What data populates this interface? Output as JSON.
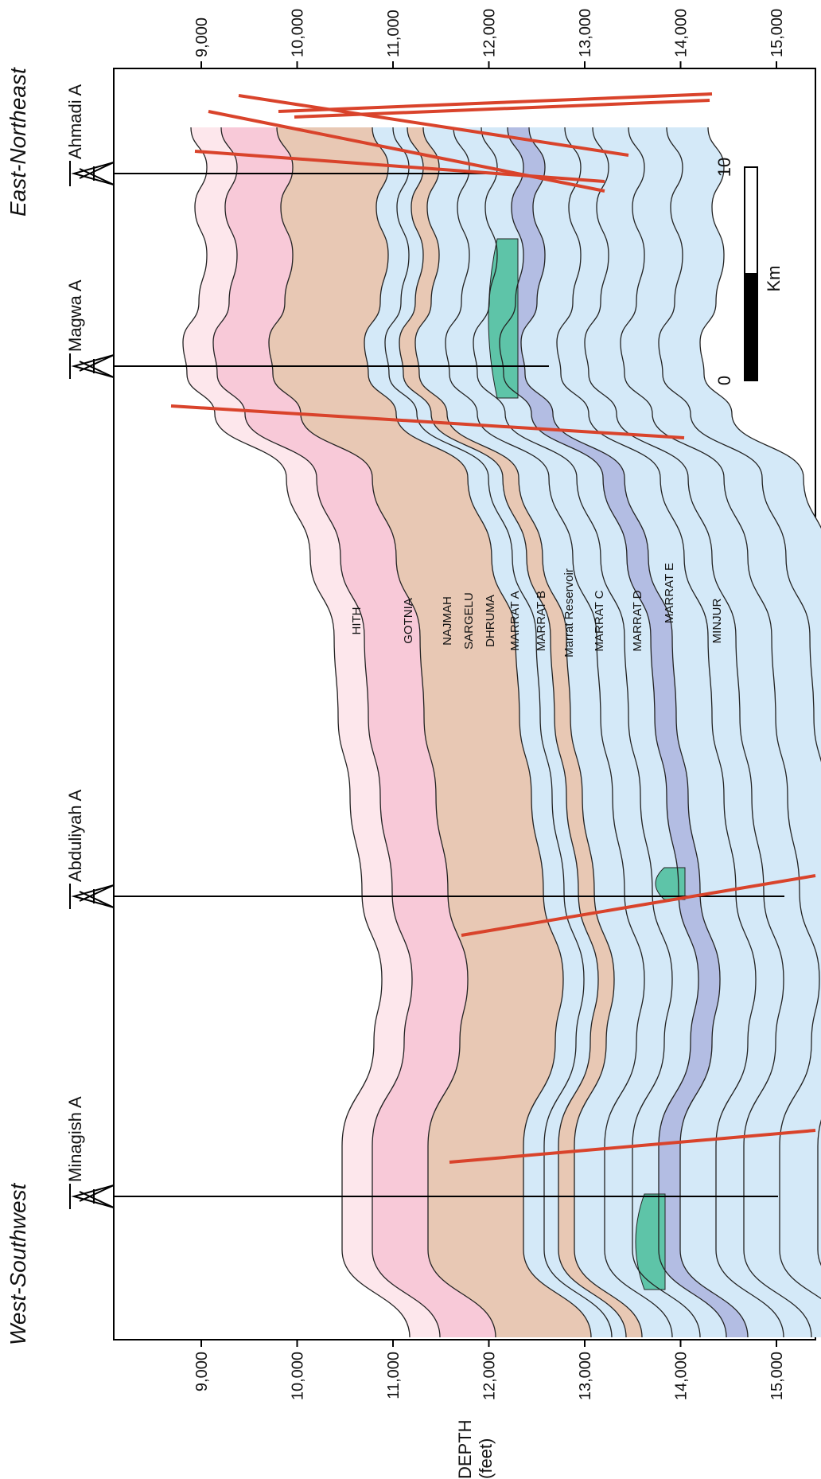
{
  "direction": {
    "left": "West-Southwest",
    "right": "East-Northeast"
  },
  "axis": {
    "title": "DEPTH",
    "unit": "(feet)",
    "ticks": [
      "9,000",
      "10,000",
      "11,000",
      "12,000",
      "13,000",
      "14,000",
      "15,000"
    ]
  },
  "wells": [
    {
      "name": "Minagish A"
    },
    {
      "name": "Abduliyah A"
    },
    {
      "name": "Magwa A"
    },
    {
      "name": "Ahmadi A"
    }
  ],
  "formations": [
    "HITH",
    "GOTNIA",
    "NAJMAH",
    "SARGELU",
    "DHRUMA",
    "MARRAT A",
    "MARRAT B",
    "Marrat Reservoir",
    "MARRAT C",
    "MARRAT D",
    "MARRAT E",
    "MINJUR"
  ],
  "scale_bar": {
    "start": "0",
    "end": "10",
    "unit": "Km"
  },
  "colors": {
    "hith": "#fde7ec",
    "gotnia": "#f8c9d8",
    "dhruma": "#e8c8b4",
    "marrat": "#d4e9f8",
    "reservoir": "#b3bde3",
    "oil": "#5ec4a8",
    "fault": "#d9432b"
  }
}
